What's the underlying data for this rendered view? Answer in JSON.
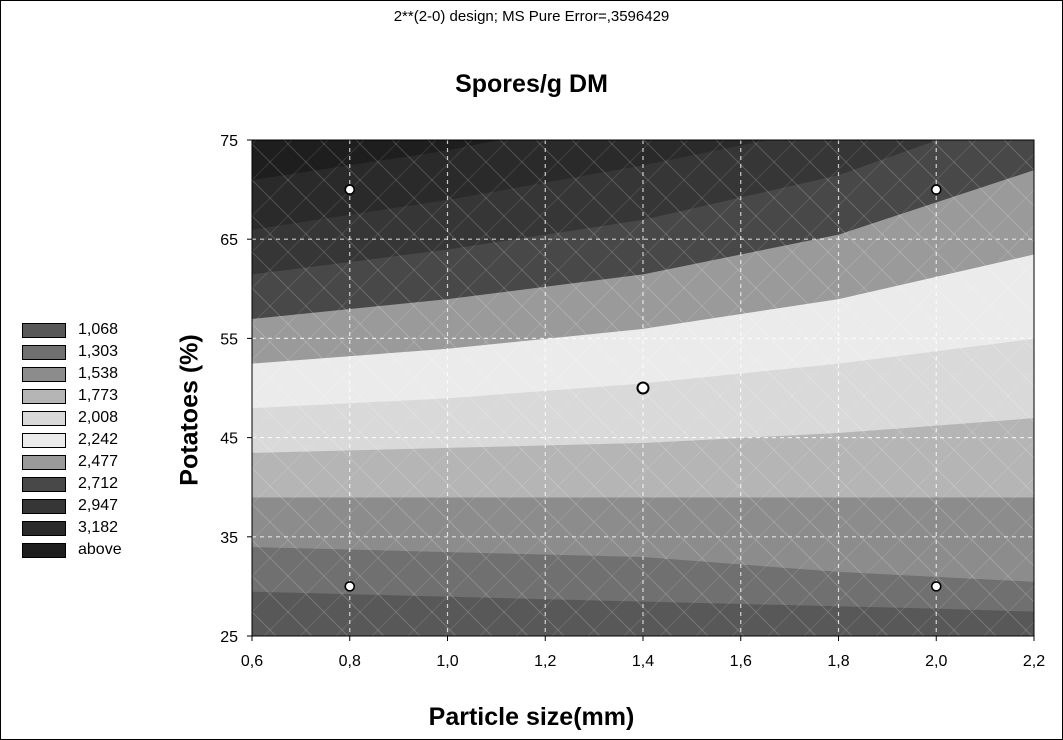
{
  "chart_data": {
    "type": "contour",
    "subtitle": "2**(2-0) design; MS Pure Error=,3596429",
    "title": "Spores/g DM",
    "xlabel": "Particle size(mm)",
    "ylabel": "Potatoes (%)",
    "xlim": [
      0.6,
      2.2
    ],
    "ylim": [
      25,
      75
    ],
    "xticks": [
      "0,6",
      "0,8",
      "1,0",
      "1,2",
      "1,4",
      "1,6",
      "1,8",
      "2,0",
      "2,2"
    ],
    "yticks": [
      "25",
      "35",
      "45",
      "55",
      "65",
      "75"
    ],
    "grid": true,
    "legend_position": "left",
    "legend": [
      {
        "label": "1,068",
        "color": "#585858"
      },
      {
        "label": "1,303",
        "color": "#707070"
      },
      {
        "label": "1,538",
        "color": "#8c8c8c"
      },
      {
        "label": "1,773",
        "color": "#b5b5b5"
      },
      {
        "label": "2,008",
        "color": "#d9d9d9"
      },
      {
        "label": "2,242",
        "color": "#ebebeb"
      },
      {
        "label": "2,477",
        "color": "#9a9a9a"
      },
      {
        "label": "2,712",
        "color": "#484848"
      },
      {
        "label": "2,947",
        "color": "#363636"
      },
      {
        "label": "3,182",
        "color": "#2a2a2a"
      },
      {
        "label": "above",
        "color": "#1e1e1e"
      }
    ],
    "bands": [
      {
        "color": "#585858",
        "lower": [
          [
            0.6,
            25
          ],
          [
            2.2,
            25
          ]
        ],
        "upper": [
          [
            0.6,
            29.5
          ],
          [
            1.4,
            28.5
          ],
          [
            2.0,
            27.8
          ],
          [
            2.2,
            27.5
          ]
        ]
      },
      {
        "color": "#707070",
        "lower": [
          [
            0.6,
            29.5
          ],
          [
            1.4,
            28.5
          ],
          [
            2.0,
            27.8
          ],
          [
            2.2,
            27.5
          ]
        ],
        "upper": [
          [
            0.6,
            34
          ],
          [
            1.0,
            33.5
          ],
          [
            1.4,
            33
          ],
          [
            1.8,
            31.5
          ],
          [
            2.2,
            30.5
          ]
        ]
      },
      {
        "color": "#8c8c8c",
        "lower": [
          [
            0.6,
            34
          ],
          [
            1.0,
            33.5
          ],
          [
            1.4,
            33
          ],
          [
            1.8,
            31.5
          ],
          [
            2.2,
            30.5
          ]
        ],
        "upper": [
          [
            0.6,
            39
          ],
          [
            2.2,
            39
          ]
        ]
      },
      {
        "color": "#b5b5b5",
        "lower": [
          [
            0.6,
            39
          ],
          [
            2.2,
            39
          ]
        ],
        "upper": [
          [
            0.6,
            43.5
          ],
          [
            1.0,
            44
          ],
          [
            1.4,
            44.5
          ],
          [
            1.8,
            45.5
          ],
          [
            2.2,
            47
          ]
        ]
      },
      {
        "color": "#d9d9d9",
        "lower": [
          [
            0.6,
            43.5
          ],
          [
            1.0,
            44
          ],
          [
            1.4,
            44.5
          ],
          [
            1.8,
            45.5
          ],
          [
            2.2,
            47
          ]
        ],
        "upper": [
          [
            0.6,
            48
          ],
          [
            1.0,
            49
          ],
          [
            1.4,
            50.5
          ],
          [
            1.8,
            52.5
          ],
          [
            2.2,
            55
          ]
        ]
      },
      {
        "color": "#ebebeb",
        "lower": [
          [
            0.6,
            48
          ],
          [
            1.0,
            49
          ],
          [
            1.4,
            50.5
          ],
          [
            1.8,
            52.5
          ],
          [
            2.2,
            55
          ]
        ],
        "upper": [
          [
            0.6,
            52.5
          ],
          [
            1.0,
            54
          ],
          [
            1.4,
            56
          ],
          [
            1.8,
            59
          ],
          [
            2.2,
            63.5
          ]
        ]
      },
      {
        "color": "#9a9a9a",
        "lower": [
          [
            0.6,
            52.5
          ],
          [
            1.0,
            54
          ],
          [
            1.4,
            56
          ],
          [
            1.8,
            59
          ],
          [
            2.2,
            63.5
          ]
        ],
        "upper": [
          [
            0.6,
            57
          ],
          [
            1.0,
            59
          ],
          [
            1.4,
            61.5
          ],
          [
            1.8,
            65.5
          ],
          [
            2.2,
            72
          ]
        ]
      },
      {
        "color": "#484848",
        "lower": [
          [
            0.6,
            57
          ],
          [
            1.0,
            59
          ],
          [
            1.4,
            61.5
          ],
          [
            1.8,
            65.5
          ],
          [
            2.2,
            72
          ]
        ],
        "upper": [
          [
            0.6,
            61.5
          ],
          [
            1.0,
            64
          ],
          [
            1.4,
            67
          ],
          [
            1.8,
            71.5
          ],
          [
            2.0,
            75
          ],
          [
            2.2,
            75
          ]
        ]
      },
      {
        "color": "#363636",
        "lower": [
          [
            0.6,
            61.5
          ],
          [
            1.0,
            64
          ],
          [
            1.4,
            67
          ],
          [
            1.8,
            71.5
          ],
          [
            2.0,
            75
          ],
          [
            2.2,
            75
          ]
        ],
        "upper": [
          [
            0.6,
            66
          ],
          [
            1.0,
            69
          ],
          [
            1.4,
            72.5
          ],
          [
            1.65,
            75
          ],
          [
            2.2,
            75
          ]
        ]
      },
      {
        "color": "#2a2a2a",
        "lower": [
          [
            0.6,
            66
          ],
          [
            1.0,
            69
          ],
          [
            1.4,
            72.5
          ],
          [
            1.65,
            75
          ],
          [
            2.2,
            75
          ]
        ],
        "upper": [
          [
            0.6,
            71
          ],
          [
            1.0,
            74
          ],
          [
            1.1,
            75
          ],
          [
            2.2,
            75
          ]
        ]
      },
      {
        "color": "#1e1e1e",
        "lower": [
          [
            0.6,
            71
          ],
          [
            1.0,
            74
          ],
          [
            1.1,
            75
          ],
          [
            2.2,
            75
          ]
        ],
        "upper": [
          [
            0.6,
            75
          ],
          [
            2.2,
            75
          ]
        ]
      }
    ],
    "points": [
      {
        "x": 0.8,
        "y": 70
      },
      {
        "x": 2.0,
        "y": 70
      },
      {
        "x": 1.4,
        "y": 50
      },
      {
        "x": 0.8,
        "y": 30
      },
      {
        "x": 2.0,
        "y": 30
      }
    ]
  }
}
